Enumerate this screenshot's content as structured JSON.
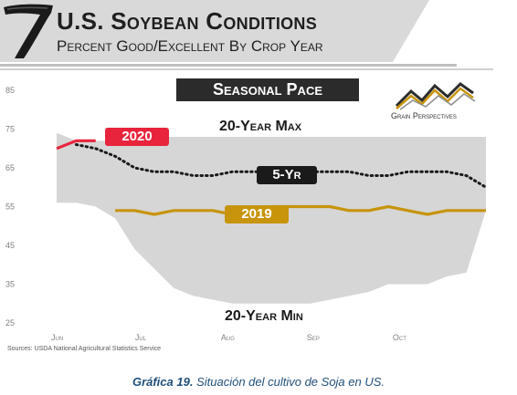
{
  "header": {
    "title": "U.S. Soybean Conditions",
    "subtitle": "Percent Good/Excellent By Crop Year"
  },
  "chart_data": {
    "type": "area",
    "title": "Seasonal Pace",
    "xlabel": "",
    "ylabel": "",
    "ylim": [
      25,
      85
    ],
    "y_ticks": [
      85,
      75,
      65,
      55,
      45,
      35,
      25
    ],
    "x_ticks": [
      "Jun",
      "Jul",
      "Aug",
      "Sep",
      "Oct"
    ],
    "grid": false,
    "x_weeks": [
      0,
      1,
      2,
      3,
      4,
      5,
      6,
      7,
      8,
      9,
      10,
      11,
      12,
      13,
      14,
      15,
      16,
      17,
      18,
      19,
      20,
      21,
      22
    ],
    "range_band": {
      "max_label": "20-Year Max",
      "min_label": "20-Year Min",
      "max": [
        74,
        72,
        72,
        72,
        73,
        73,
        73,
        73,
        73,
        73,
        73,
        73,
        73,
        73,
        73,
        73,
        73,
        73,
        73,
        73,
        73,
        73,
        73
      ],
      "min": [
        56,
        56,
        55,
        52,
        44,
        39,
        34,
        32,
        31,
        30,
        30,
        30,
        30,
        30,
        31,
        32,
        33,
        35,
        35,
        35,
        37,
        38,
        54
      ]
    },
    "series": [
      {
        "name": "2020",
        "color": "#e8243c",
        "style": "solid",
        "values": [
          70,
          72,
          72,
          null,
          null,
          null,
          null,
          null,
          null,
          null,
          null,
          null,
          null,
          null,
          null,
          null,
          null,
          null,
          null,
          null,
          null,
          null,
          null
        ]
      },
      {
        "name": "5-Yr",
        "color": "#1a1a1a",
        "style": "dotted",
        "values": [
          null,
          71,
          70,
          68,
          65,
          64,
          64,
          63,
          63,
          64,
          64,
          64,
          64,
          64,
          64,
          64,
          63,
          63,
          64,
          64,
          64,
          63,
          60
        ]
      },
      {
        "name": "2019",
        "color": "#c8940c",
        "style": "solid",
        "values": [
          null,
          null,
          null,
          54,
          54,
          53,
          54,
          54,
          54,
          53,
          54,
          55,
          55,
          55,
          55,
          54,
          54,
          55,
          54,
          53,
          54,
          54,
          54
        ]
      }
    ]
  },
  "brand": {
    "name": "Grain Perspectives"
  },
  "source": "Sources: USDA National Agricultural Statistics Service",
  "caption": {
    "bold": "Gráfica 19.",
    "text": " Situación del cultivo de Soja en US."
  }
}
